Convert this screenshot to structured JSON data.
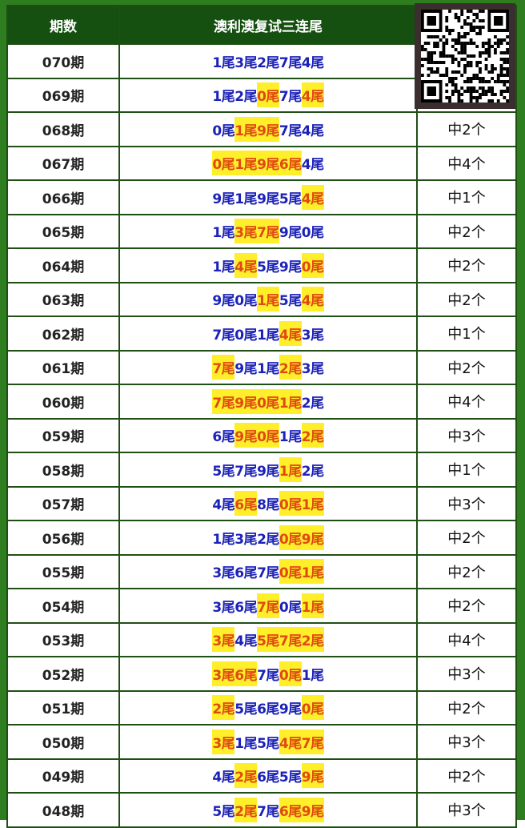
{
  "header": {
    "col_period": "期数",
    "col_tails": "澳利澳复试三连尾"
  },
  "colors": {
    "header_bg": "#165010",
    "border": "#2e7d1e",
    "tail_text": "#1c22b8",
    "hit_text": "#e04a12",
    "hit_bg": "#ffee2a"
  },
  "rows": [
    {
      "period": "070期",
      "tails": [
        [
          "1尾",
          0
        ],
        [
          "3尾",
          0
        ],
        [
          "2尾",
          0
        ],
        [
          "7尾",
          0
        ],
        [
          "4尾",
          0
        ]
      ],
      "result": ""
    },
    {
      "period": "069期",
      "tails": [
        [
          "1尾",
          0
        ],
        [
          "2尾",
          0
        ],
        [
          "0尾",
          1
        ],
        [
          "7尾",
          0
        ],
        [
          "4尾",
          1
        ]
      ],
      "result": ""
    },
    {
      "period": "068期",
      "tails": [
        [
          "0尾",
          0
        ],
        [
          "1尾",
          1
        ],
        [
          "9尾",
          1
        ],
        [
          "7尾",
          0
        ],
        [
          "4尾",
          0
        ]
      ],
      "result": "中2个"
    },
    {
      "period": "067期",
      "tails": [
        [
          "0尾",
          1
        ],
        [
          "1尾",
          1
        ],
        [
          "9尾",
          1
        ],
        [
          "6尾",
          1
        ],
        [
          "4尾",
          0
        ]
      ],
      "result": "中4个"
    },
    {
      "period": "066期",
      "tails": [
        [
          "9尾",
          0
        ],
        [
          "1尾",
          0
        ],
        [
          "9尾",
          0
        ],
        [
          "5尾",
          0
        ],
        [
          "4尾",
          1
        ]
      ],
      "result": "中1个"
    },
    {
      "period": "065期",
      "tails": [
        [
          "1尾",
          0
        ],
        [
          "3尾",
          1
        ],
        [
          "7尾",
          1
        ],
        [
          "9尾",
          0
        ],
        [
          "0尾",
          0
        ]
      ],
      "result": "中2个"
    },
    {
      "period": "064期",
      "tails": [
        [
          "1尾",
          0
        ],
        [
          "4尾",
          1
        ],
        [
          "5尾",
          0
        ],
        [
          "9尾",
          0
        ],
        [
          "0尾",
          1
        ]
      ],
      "result": "中2个"
    },
    {
      "period": "063期",
      "tails": [
        [
          "9尾",
          0
        ],
        [
          "0尾",
          0
        ],
        [
          "1尾",
          1
        ],
        [
          "5尾",
          0
        ],
        [
          "4尾",
          1
        ]
      ],
      "result": "中2个"
    },
    {
      "period": "062期",
      "tails": [
        [
          "7尾",
          0
        ],
        [
          "0尾",
          0
        ],
        [
          "1尾",
          0
        ],
        [
          "4尾",
          1
        ],
        [
          "3尾",
          0
        ]
      ],
      "result": "中1个"
    },
    {
      "period": "061期",
      "tails": [
        [
          "7尾",
          1
        ],
        [
          "9尾",
          0
        ],
        [
          "1尾",
          0
        ],
        [
          "2尾",
          1
        ],
        [
          "3尾",
          0
        ]
      ],
      "result": "中2个"
    },
    {
      "period": "060期",
      "tails": [
        [
          "7尾",
          1
        ],
        [
          "9尾",
          1
        ],
        [
          "0尾",
          1
        ],
        [
          "1尾",
          1
        ],
        [
          "2尾",
          0
        ]
      ],
      "result": "中4个"
    },
    {
      "period": "059期",
      "tails": [
        [
          "6尾",
          0
        ],
        [
          "9尾",
          1
        ],
        [
          "0尾",
          1
        ],
        [
          "1尾",
          0
        ],
        [
          "2尾",
          1
        ]
      ],
      "result": "中3个"
    },
    {
      "period": "058期",
      "tails": [
        [
          "5尾",
          0
        ],
        [
          "7尾",
          0
        ],
        [
          "9尾",
          0
        ],
        [
          "1尾",
          1
        ],
        [
          "2尾",
          0
        ]
      ],
      "result": "中1个"
    },
    {
      "period": "057期",
      "tails": [
        [
          "4尾",
          0
        ],
        [
          "6尾",
          1
        ],
        [
          "8尾",
          0
        ],
        [
          "0尾",
          1
        ],
        [
          "1尾",
          1
        ]
      ],
      "result": "中3个"
    },
    {
      "period": "056期",
      "tails": [
        [
          "1尾",
          0
        ],
        [
          "3尾",
          0
        ],
        [
          "2尾",
          0
        ],
        [
          "0尾",
          1
        ],
        [
          "9尾",
          1
        ]
      ],
      "result": "中2个"
    },
    {
      "period": "055期",
      "tails": [
        [
          "3尾",
          0
        ],
        [
          "6尾",
          0
        ],
        [
          "7尾",
          0
        ],
        [
          "0尾",
          1
        ],
        [
          "1尾",
          1
        ]
      ],
      "result": "中2个"
    },
    {
      "period": "054期",
      "tails": [
        [
          "3尾",
          0
        ],
        [
          "6尾",
          0
        ],
        [
          "7尾",
          1
        ],
        [
          "0尾",
          0
        ],
        [
          "1尾",
          1
        ]
      ],
      "result": "中2个"
    },
    {
      "period": "053期",
      "tails": [
        [
          "3尾",
          1
        ],
        [
          "4尾",
          0
        ],
        [
          "5尾",
          1
        ],
        [
          "7尾",
          1
        ],
        [
          "2尾",
          1
        ]
      ],
      "result": "中4个"
    },
    {
      "period": "052期",
      "tails": [
        [
          "3尾",
          1
        ],
        [
          "6尾",
          1
        ],
        [
          "7尾",
          0
        ],
        [
          "0尾",
          1
        ],
        [
          "1尾",
          0
        ]
      ],
      "result": "中3个"
    },
    {
      "period": "051期",
      "tails": [
        [
          "2尾",
          1
        ],
        [
          "5尾",
          0
        ],
        [
          "6尾",
          0
        ],
        [
          "9尾",
          0
        ],
        [
          "0尾",
          1
        ]
      ],
      "result": "中2个"
    },
    {
      "period": "050期",
      "tails": [
        [
          "3尾",
          1
        ],
        [
          "1尾",
          0
        ],
        [
          "5尾",
          0
        ],
        [
          "4尾",
          1
        ],
        [
          "7尾",
          1
        ]
      ],
      "result": "中3个"
    },
    {
      "period": "049期",
      "tails": [
        [
          "4尾",
          0
        ],
        [
          "2尾",
          1
        ],
        [
          "6尾",
          0
        ],
        [
          "5尾",
          0
        ],
        [
          "9尾",
          1
        ]
      ],
      "result": "中2个"
    },
    {
      "period": "048期",
      "tails": [
        [
          "5尾",
          0
        ],
        [
          "2尾",
          1
        ],
        [
          "7尾",
          0
        ],
        [
          "6尾",
          1
        ],
        [
          "9尾",
          1
        ]
      ],
      "result": "中3个"
    }
  ]
}
